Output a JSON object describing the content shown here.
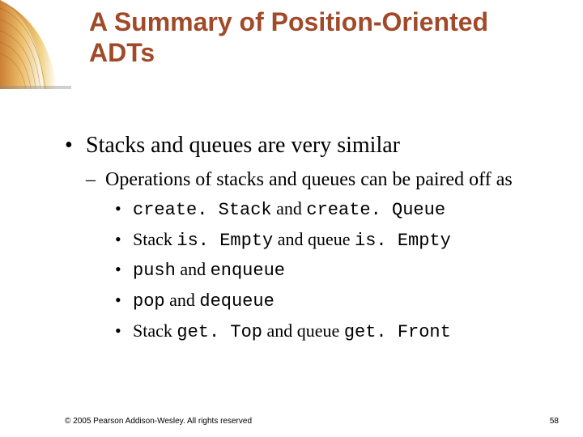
{
  "title": {
    "text": "A Summary of Position-Oriented ADTs",
    "color": "#a04a2a",
    "font_family": "Arial",
    "font_weight": "bold",
    "font_size_pt": 32
  },
  "header_decor": {
    "stripe_colors": [
      "#c8742f",
      "#e0a050",
      "#f0d080",
      "#ffffff"
    ],
    "shadow_color": "#7a7a7a",
    "curve": true
  },
  "bullets": {
    "l1_symbol": "•",
    "l2_symbol": "–",
    "l3_symbol": "•"
  },
  "content": {
    "l1": "Stacks and queues are very similar",
    "l2": "Operations of stacks and queues can be paired off as",
    "l3": [
      {
        "segments": [
          {
            "t": "create. Stack",
            "mono": true
          },
          {
            "t": " and ",
            "mono": false
          },
          {
            "t": "create. Queue",
            "mono": true
          }
        ]
      },
      {
        "segments": [
          {
            "t": "Stack ",
            "mono": false
          },
          {
            "t": "is. Empty",
            "mono": true
          },
          {
            "t": " and queue ",
            "mono": false
          },
          {
            "t": "is. Empty",
            "mono": true
          }
        ]
      },
      {
        "segments": [
          {
            "t": "push",
            "mono": true
          },
          {
            "t": " and ",
            "mono": false
          },
          {
            "t": "enqueue",
            "mono": true
          }
        ]
      },
      {
        "segments": [
          {
            "t": "pop",
            "mono": true
          },
          {
            "t": " and ",
            "mono": false
          },
          {
            "t": "dequeue",
            "mono": true
          }
        ]
      },
      {
        "segments": [
          {
            "t": "Stack ",
            "mono": false
          },
          {
            "t": "get. Top",
            "mono": true
          },
          {
            "t": " and queue ",
            "mono": false
          },
          {
            "t": "get. Front",
            "mono": true
          }
        ]
      }
    ]
  },
  "footer": {
    "copyright": "© 2005 Pearson Addison-Wesley. All rights reserved",
    "page": "58"
  },
  "style": {
    "body_font": "Times New Roman",
    "mono_font": "Courier New",
    "l1_size_pt": 28,
    "l2_size_pt": 24,
    "l3_size_pt": 22,
    "footer_font": "Arial",
    "footer_size_pt": 10,
    "background": "#ffffff",
    "text_color": "#000000"
  }
}
